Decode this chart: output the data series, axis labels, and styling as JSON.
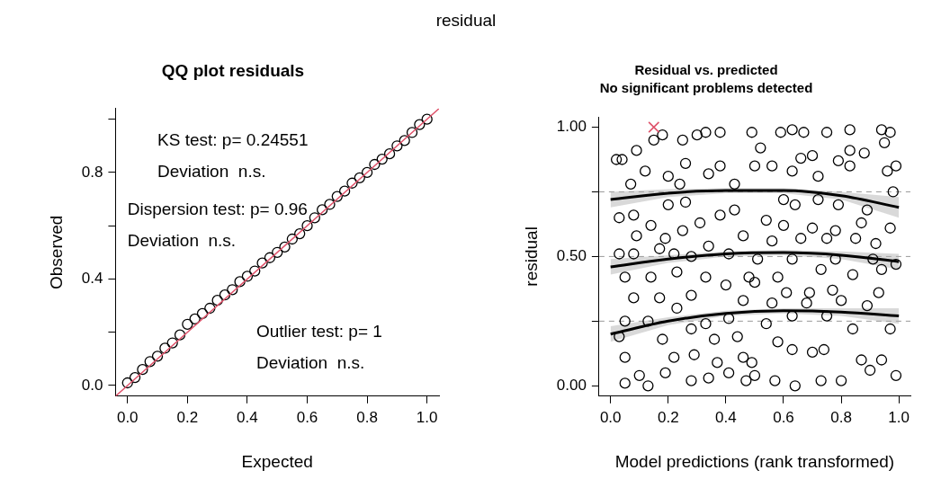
{
  "chart_data": [
    {
      "type": "other",
      "title": "residual"
    },
    {
      "type": "scatter",
      "title": "QQ plot residuals",
      "xlabel": "Expected",
      "ylabel": "Observed",
      "xlim": [
        -0.04,
        1.04
      ],
      "ylim": [
        -0.04,
        1.04
      ],
      "xticks": [
        {
          "value": 0,
          "label": "0.0"
        },
        {
          "value": 0.2,
          "label": "0.2"
        },
        {
          "value": 0.4,
          "label": "0.4"
        },
        {
          "value": 0.6,
          "label": "0.6"
        },
        {
          "value": 0.8,
          "label": "0.8"
        },
        {
          "value": 1,
          "label": "1.0"
        }
      ],
      "yticks": [
        {
          "value": 0,
          "label": "0.0"
        },
        {
          "value": 0.2,
          "label": null
        },
        {
          "value": 0.4,
          "label": "0.4"
        },
        {
          "value": 0.6,
          "label": null
        },
        {
          "value": 0.8,
          "label": "0.8"
        },
        {
          "value": 1,
          "label": null
        }
      ],
      "legend": false,
      "grid": false,
      "annotations": [
        "KS test: p= 0.24551",
        "Deviation  n.s.",
        "Dispersion test: p= 0.96",
        "Deviation  n.s.",
        "Outlier test: p= 1",
        "Deviation  n.s."
      ],
      "series": [
        {
          "type": "scatter",
          "color": "#000000",
          "marker": "circle",
          "x": [
            0,
            0.025,
            0.05,
            0.075,
            0.1,
            0.125,
            0.15,
            0.175,
            0.2,
            0.225,
            0.25,
            0.275,
            0.3,
            0.325,
            0.35,
            0.375,
            0.4,
            0.425,
            0.45,
            0.475,
            0.5,
            0.525,
            0.55,
            0.575,
            0.6,
            0.625,
            0.65,
            0.675,
            0.7,
            0.725,
            0.75,
            0.775,
            0.8,
            0.825,
            0.85,
            0.875,
            0.9,
            0.925,
            0.95,
            0.975,
            1
          ],
          "values": [
            0.01,
            0.03,
            0.06,
            0.09,
            0.11,
            0.14,
            0.16,
            0.19,
            0.23,
            0.25,
            0.27,
            0.29,
            0.32,
            0.34,
            0.36,
            0.39,
            0.41,
            0.43,
            0.46,
            0.48,
            0.5,
            0.52,
            0.55,
            0.57,
            0.6,
            0.63,
            0.66,
            0.68,
            0.71,
            0.73,
            0.76,
            0.78,
            0.8,
            0.83,
            0.85,
            0.87,
            0.9,
            0.92,
            0.95,
            0.98,
            1
          ]
        },
        {
          "type": "line",
          "color": "#df536b",
          "x": [
            -0.04,
            1.04
          ],
          "values": [
            -0.04,
            1.04
          ]
        }
      ]
    },
    {
      "type": "scatter",
      "title": "Residual vs. predicted",
      "subtitle": "No significant problems detected",
      "xlabel": "Model predictions (rank transformed)",
      "ylabel": "residual",
      "xlim": [
        -0.04,
        1.04
      ],
      "ylim": [
        -0.04,
        1.04
      ],
      "xticks": [
        {
          "value": 0,
          "label": "0.0"
        },
        {
          "value": 0.2,
          "label": "0.2"
        },
        {
          "value": 0.4,
          "label": "0.4"
        },
        {
          "value": 0.6,
          "label": "0.6"
        },
        {
          "value": 0.8,
          "label": "0.8"
        },
        {
          "value": 1,
          "label": "1.0"
        }
      ],
      "yticks": [
        {
          "value": 0,
          "label": "0.00"
        },
        {
          "value": 0.25,
          "label": null
        },
        {
          "value": 0.5,
          "label": "0.50"
        },
        {
          "value": 0.75,
          "label": null
        },
        {
          "value": 1,
          "label": "1.00"
        }
      ],
      "legend": false,
      "grid": false,
      "ref_lines": [
        {
          "axis": "y",
          "value": 0.25,
          "color": "#999999",
          "line_style": "dashed"
        },
        {
          "axis": "y",
          "value": 0.5,
          "color": "#999999",
          "line_style": "dashed"
        },
        {
          "axis": "y",
          "value": 0.75,
          "color": "#999999",
          "line_style": "dashed"
        }
      ],
      "series": [
        {
          "type": "scatter",
          "color": "#000000",
          "marker": "circle",
          "x": [
            0.02,
            0.04,
            0.09,
            0.15,
            0.18,
            0.25,
            0.3,
            0.33,
            0.38,
            0.38,
            0.26,
            0.12,
            0.07,
            0.2,
            0.24,
            0.34,
            0.43,
            0.03,
            0.08,
            0.14,
            0.2,
            0.26,
            0.31,
            0.38,
            0.43,
            0.46,
            0.09,
            0.19,
            0.25,
            0.03,
            0.08,
            0.17,
            0.22,
            0.28,
            0.34,
            0.41,
            0.05,
            0.14,
            0.23,
            0.33,
            0.4,
            0.48,
            0.08,
            0.17,
            0.28,
            0.46,
            0.05,
            0.13,
            0.23,
            0.33,
            0.41,
            0.03,
            0.18,
            0.28,
            0.36,
            0.44,
            0.05,
            0.1,
            0.22,
            0.29,
            0.37,
            0.46,
            0.05,
            0.13,
            0.19,
            0.28,
            0.34,
            0.41,
            0.47,
            0.49,
            0.59,
            0.63,
            0.67,
            0.75,
            0.83,
            0.94,
            0.97,
            0.52,
            0.66,
            0.7,
            0.79,
            0.83,
            0.88,
            0.95,
            0.5,
            0.56,
            0.63,
            0.72,
            0.83,
            0.99,
            0.96,
            0.6,
            0.64,
            0.72,
            0.79,
            0.89,
            0.98,
            0.54,
            0.6,
            0.7,
            0.78,
            0.87,
            0.97,
            0.56,
            0.66,
            0.75,
            0.85,
            0.92,
            0.51,
            0.63,
            0.78,
            0.91,
            0.99,
            0.58,
            0.73,
            0.84,
            0.94,
            0.5,
            0.61,
            0.69,
            0.77,
            0.93,
            0.56,
            0.68,
            0.8,
            0.89,
            0.54,
            0.63,
            0.75,
            0.84,
            0.97,
            0.58,
            0.7,
            0.74,
            0.87,
            0.94,
            0.49,
            0.63,
            0.5,
            0.57,
            0.64,
            0.73,
            0.8,
            0.9,
            0.99
          ],
          "values": [
            0.875,
            0.875,
            0.91,
            0.95,
            0.97,
            0.95,
            0.97,
            0.98,
            0.98,
            0.85,
            0.86,
            0.83,
            0.78,
            0.81,
            0.78,
            0.82,
            0.78,
            0.65,
            0.66,
            0.62,
            0.7,
            0.71,
            0.63,
            0.66,
            0.68,
            0.58,
            0.58,
            0.57,
            0.6,
            0.51,
            0.51,
            0.53,
            0.51,
            0.5,
            0.54,
            0.51,
            0.42,
            0.42,
            0.44,
            0.42,
            0.39,
            0.42,
            0.34,
            0.34,
            0.35,
            0.33,
            0.25,
            0.25,
            0.3,
            0.24,
            0.26,
            0.19,
            0.18,
            0.22,
            0.18,
            0.19,
            0.11,
            0.04,
            0.11,
            0.12,
            0.09,
            0.11,
            0.01,
            0,
            0.05,
            0.02,
            0.03,
            0.05,
            0.02,
            0.98,
            0.98,
            0.99,
            0.98,
            0.98,
            0.99,
            0.99,
            0.98,
            0.92,
            0.88,
            0.89,
            0.87,
            0.91,
            0.9,
            0.94,
            0.85,
            0.85,
            0.83,
            0.81,
            0.85,
            0.85,
            0.83,
            0.72,
            0.7,
            0.72,
            0.7,
            0.68,
            0.75,
            0.64,
            0.62,
            0.61,
            0.6,
            0.63,
            0.61,
            0.56,
            0.57,
            0.57,
            0.57,
            0.55,
            0.49,
            0.49,
            0.49,
            0.49,
            0.47,
            0.42,
            0.45,
            0.43,
            0.45,
            0.4,
            0.36,
            0.36,
            0.37,
            0.36,
            0.32,
            0.32,
            0.33,
            0.31,
            0.24,
            0.27,
            0.27,
            0.22,
            0.22,
            0.17,
            0.13,
            0.14,
            0.1,
            0.1,
            0.09,
            0.14,
            0.04,
            0.02,
            0,
            0.02,
            0.02,
            0.06,
            0.04
          ]
        },
        {
          "type": "scatter",
          "color": "#df536b",
          "marker": "cross",
          "x": [
            0.15
          ],
          "values": [
            1
          ]
        },
        {
          "type": "line",
          "color": "#000000",
          "x": [
            0,
            0.2,
            0.4,
            0.6,
            0.8,
            1
          ],
          "values": [
            0.2,
            0.25,
            0.28,
            0.29,
            0.285,
            0.27
          ],
          "lower": [
            0.17,
            0.235,
            0.27,
            0.28,
            0.27,
            0.24
          ],
          "upper": [
            0.23,
            0.265,
            0.29,
            0.3,
            0.3,
            0.3
          ]
        },
        {
          "type": "line",
          "color": "#000000",
          "x": [
            0,
            0.2,
            0.4,
            0.6,
            0.8,
            1
          ],
          "values": [
            0.46,
            0.49,
            0.51,
            0.515,
            0.505,
            0.48
          ],
          "lower": [
            0.43,
            0.475,
            0.5,
            0.505,
            0.49,
            0.45
          ],
          "upper": [
            0.49,
            0.505,
            0.52,
            0.525,
            0.52,
            0.51
          ]
        },
        {
          "type": "line",
          "color": "#000000",
          "x": [
            0,
            0.2,
            0.4,
            0.6,
            0.8,
            1
          ],
          "values": [
            0.72,
            0.745,
            0.755,
            0.755,
            0.735,
            0.69
          ],
          "lower": [
            0.69,
            0.73,
            0.745,
            0.745,
            0.72,
            0.65
          ],
          "upper": [
            0.75,
            0.76,
            0.765,
            0.765,
            0.75,
            0.73
          ]
        }
      ]
    }
  ]
}
